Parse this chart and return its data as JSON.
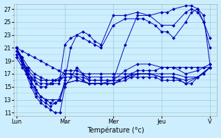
{
  "title": "Température (°c)",
  "background_color": "#cceeff",
  "line_color": "#0000bb",
  "grid_color": "#99cccc",
  "ylim": [
    10.5,
    27.8
  ],
  "yticks": [
    11,
    13,
    15,
    17,
    19,
    21,
    23,
    25,
    27
  ],
  "days": [
    "Lun",
    "Mar",
    "Mer",
    "Jeu",
    "V"
  ],
  "x_positions": [
    0,
    1,
    2,
    3,
    4
  ],
  "xlim": [
    -0.05,
    4.15
  ],
  "figsize": [
    3.2,
    2.0
  ],
  "dpi": 100,
  "series": [
    {
      "x": [
        0.0,
        0.12,
        0.25,
        0.37,
        0.5,
        0.62,
        0.75,
        0.87,
        1.0,
        1.12,
        1.25,
        1.37,
        1.5,
        1.62,
        1.75,
        1.87,
        2.0,
        2.12,
        2.25,
        2.37,
        2.5,
        2.62,
        2.75,
        2.87,
        3.0,
        3.12,
        3.25,
        3.37,
        3.5,
        3.62,
        3.75,
        3.87,
        4.0
      ],
      "y": [
        21.0,
        20.5,
        20.0,
        19.5,
        19.0,
        18.5,
        18.0,
        17.5,
        17.0,
        17.0,
        16.5,
        16.0,
        15.5,
        15.5,
        15.5,
        15.5,
        15.5,
        16.0,
        16.5,
        17.0,
        17.5,
        17.5,
        17.5,
        17.5,
        18.0,
        18.0,
        18.0,
        18.0,
        18.0,
        18.0,
        18.0,
        18.0,
        18.0
      ]
    },
    {
      "x": [
        0.0,
        0.12,
        0.25,
        0.37,
        0.5,
        0.62,
        0.75,
        0.87,
        1.0,
        1.12,
        1.25,
        1.37,
        1.5,
        1.62,
        1.75,
        1.87,
        2.0,
        2.12,
        2.25,
        2.37,
        2.5,
        2.62,
        2.75,
        2.87,
        3.0,
        3.12,
        3.25,
        3.37,
        3.5,
        3.62,
        3.75,
        3.87,
        4.0
      ],
      "y": [
        21.0,
        19.5,
        18.0,
        17.0,
        16.5,
        16.0,
        16.0,
        16.0,
        16.5,
        16.5,
        16.5,
        16.5,
        16.0,
        16.0,
        16.0,
        16.0,
        16.0,
        16.0,
        16.5,
        16.5,
        16.5,
        16.5,
        16.5,
        16.5,
        16.0,
        16.0,
        16.0,
        16.0,
        15.5,
        15.5,
        16.5,
        17.0,
        18.0
      ]
    },
    {
      "x": [
        0.0,
        0.12,
        0.25,
        0.37,
        0.5,
        0.62,
        0.75,
        0.87,
        1.0,
        1.12,
        1.25,
        1.37,
        1.5,
        1.75,
        2.0,
        2.25,
        2.5,
        2.75,
        3.0,
        3.25,
        3.5,
        3.75,
        4.0
      ],
      "y": [
        20.5,
        19.0,
        17.5,
        16.5,
        16.0,
        16.0,
        16.0,
        16.0,
        17.5,
        17.5,
        17.5,
        17.0,
        17.0,
        17.0,
        17.0,
        17.0,
        17.0,
        17.0,
        16.5,
        16.5,
        15.5,
        16.5,
        18.0
      ]
    },
    {
      "x": [
        0.0,
        0.12,
        0.25,
        0.37,
        0.5,
        0.62,
        0.75,
        0.87,
        1.0,
        1.25,
        1.5,
        1.75,
        2.0,
        2.25,
        2.5,
        2.75,
        3.0,
        3.25,
        3.5,
        3.75,
        4.0
      ],
      "y": [
        20.0,
        18.5,
        17.0,
        16.0,
        15.5,
        15.5,
        15.5,
        15.5,
        17.0,
        17.0,
        16.5,
        16.5,
        16.5,
        16.5,
        17.0,
        17.0,
        16.5,
        16.5,
        16.0,
        16.5,
        18.0
      ]
    },
    {
      "x": [
        0.0,
        0.12,
        0.25,
        0.37,
        0.5,
        0.62,
        0.75,
        0.87,
        1.0,
        1.25,
        1.5,
        1.75,
        2.0,
        2.25,
        2.5,
        2.75,
        3.0,
        3.25,
        3.5,
        3.75,
        4.0
      ],
      "y": [
        19.5,
        18.0,
        16.5,
        15.0,
        13.5,
        13.0,
        13.0,
        13.0,
        15.5,
        16.0,
        15.5,
        15.5,
        15.5,
        16.0,
        17.0,
        17.0,
        17.0,
        17.0,
        16.5,
        16.5,
        18.0
      ]
    },
    {
      "x": [
        0.0,
        0.1,
        0.2,
        0.3,
        0.4,
        0.5,
        0.6,
        0.7,
        0.8,
        0.9,
        1.0,
        1.25,
        1.5,
        1.75,
        2.0,
        2.25,
        2.5,
        2.75,
        3.0,
        3.25,
        3.5,
        3.75,
        4.0
      ],
      "y": [
        21.0,
        19.5,
        17.5,
        15.5,
        14.0,
        13.0,
        12.5,
        12.0,
        12.5,
        13.0,
        15.5,
        16.0,
        15.5,
        15.5,
        16.0,
        17.5,
        18.5,
        18.5,
        18.0,
        18.0,
        17.0,
        17.5,
        18.5
      ]
    },
    {
      "x": [
        0.0,
        0.1,
        0.2,
        0.3,
        0.4,
        0.5,
        0.6,
        0.7,
        0.8,
        0.9,
        1.0,
        1.25,
        1.5,
        1.75,
        2.0,
        2.25,
        2.5,
        2.75,
        3.0,
        3.12,
        3.25,
        3.5,
        3.62,
        3.75,
        3.87,
        4.0
      ],
      "y": [
        21.0,
        19.0,
        17.0,
        15.0,
        13.5,
        12.5,
        12.0,
        11.5,
        11.0,
        11.0,
        15.0,
        18.0,
        16.0,
        16.0,
        16.0,
        21.5,
        26.0,
        26.0,
        26.5,
        26.5,
        27.0,
        27.5,
        27.5,
        27.0,
        25.0,
        21.0
      ]
    },
    {
      "x": [
        0.0,
        0.1,
        0.2,
        0.3,
        0.4,
        0.5,
        0.6,
        0.7,
        0.8,
        0.9,
        1.0,
        1.12,
        1.25,
        1.37,
        1.5,
        1.62,
        1.75,
        2.0,
        2.25,
        2.5,
        2.75,
        3.0,
        3.25,
        3.5,
        3.62,
        3.75,
        3.87,
        4.0
      ],
      "y": [
        21.0,
        19.5,
        17.5,
        16.0,
        14.5,
        13.5,
        13.0,
        12.5,
        12.5,
        13.0,
        16.0,
        21.0,
        23.0,
        23.5,
        23.0,
        22.0,
        21.5,
        26.0,
        26.0,
        26.5,
        26.0,
        24.5,
        24.5,
        26.5,
        27.0,
        26.5,
        25.0,
        22.5
      ]
    },
    {
      "x": [
        0.0,
        0.1,
        0.2,
        0.3,
        0.4,
        0.5,
        0.6,
        0.7,
        0.8,
        0.9,
        1.0,
        1.12,
        1.25,
        1.37,
        1.5,
        1.62,
        1.75,
        2.0,
        2.25,
        2.5,
        2.62,
        2.75,
        2.87,
        3.0,
        3.12,
        3.25,
        3.5,
        3.62,
        3.75,
        3.87,
        4.0
      ],
      "y": [
        21.0,
        19.5,
        18.0,
        16.5,
        15.5,
        15.0,
        15.0,
        15.5,
        16.0,
        16.5,
        21.5,
        22.5,
        23.0,
        22.5,
        22.0,
        21.5,
        21.0,
        24.5,
        25.5,
        25.5,
        25.5,
        25.0,
        24.5,
        23.5,
        23.5,
        22.5,
        25.0,
        26.5,
        27.0,
        26.0,
        18.5
      ]
    }
  ]
}
